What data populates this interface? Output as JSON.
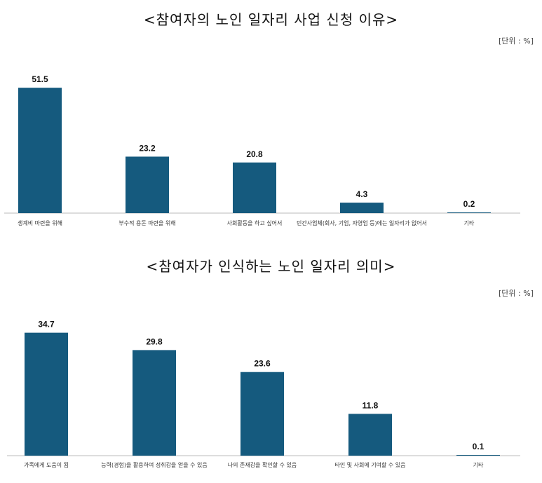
{
  "chart_data": [
    {
      "type": "bar",
      "title": "<참여자의 노인 일자리 사업 신청 이유>",
      "unit": "[단위 : %]",
      "categories": [
        "생계비 마련을 위해",
        "부수적 용돈 마련을 위해",
        "사회활동을 하고 싶어서",
        "민간사업체(회사, 기업, 자영업 등)에는 일자리가 없어서",
        "기타"
      ],
      "values": [
        51.5,
        23.2,
        20.8,
        4.3,
        0.2
      ],
      "value_labels": [
        "51.5",
        "23.2",
        "20.8",
        "4.3",
        "0.2"
      ],
      "ylim": [
        0,
        55
      ],
      "bar_color": "#155a7e",
      "grid": false,
      "legend": "none"
    },
    {
      "type": "bar",
      "title": "<참여자가 인식하는 노인 일자리 의미>",
      "unit": "[단위 : %]",
      "categories": [
        "가족에게 도움이 됨",
        "능력(경험)을 활용하여 성취감을 얻을 수 있음",
        "나의 존재감을 확인할 수 있음",
        "타인 및 사회에 기여할 수 있음",
        "기타"
      ],
      "values": [
        34.7,
        29.8,
        23.6,
        11.8,
        0.1
      ],
      "value_labels": [
        "34.7",
        "29.8",
        "23.6",
        "11.8",
        "0.1"
      ],
      "ylim": [
        0,
        37
      ],
      "bar_color": "#155a7e",
      "grid": false,
      "legend": "none"
    }
  ]
}
